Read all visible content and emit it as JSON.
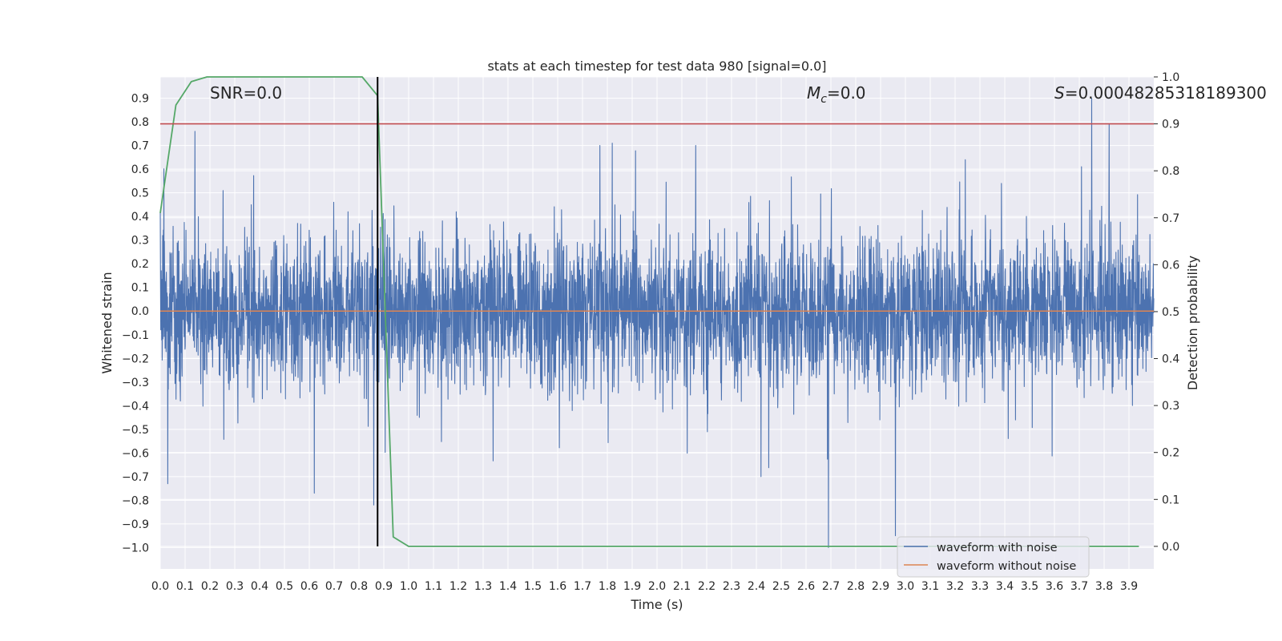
{
  "chart_data": {
    "type": "line",
    "title": "stats at each timestep for test data 980 [signal=0.0]",
    "xlabel": "Time (s)",
    "ylabel": "Whitened strain",
    "y2label": "Detection probability",
    "xlim": [
      0.0,
      4.0
    ],
    "ylim": [
      -1.09,
      0.99
    ],
    "y2lim": [
      -0.048,
      1.0
    ],
    "x_ticks": [
      0.0,
      0.1,
      0.2,
      0.3,
      0.4,
      0.5,
      0.6,
      0.7,
      0.8,
      0.9,
      1.0,
      1.1,
      1.2,
      1.3,
      1.4,
      1.5,
      1.6,
      1.7,
      1.8,
      1.9,
      2.0,
      2.1,
      2.2,
      2.3,
      2.4,
      2.5,
      2.6,
      2.7,
      2.8,
      2.9,
      3.0,
      3.1,
      3.2,
      3.3,
      3.4,
      3.5,
      3.6,
      3.7,
      3.8,
      3.9
    ],
    "x_tick_labels": [
      "0.0",
      "0.1",
      "0.2",
      "0.3",
      "0.4",
      "0.5",
      "0.6",
      "0.7",
      "0.8",
      "0.9",
      "1.0",
      "1.1",
      "1.2",
      "1.3",
      "1.4",
      "1.5",
      "1.6",
      "1.7",
      "1.8",
      "1.9",
      "2.0",
      "2.1",
      "2.2",
      "2.3",
      "2.4",
      "2.5",
      "2.6",
      "2.7",
      "2.8",
      "2.9",
      "3.0",
      "3.1",
      "3.2",
      "3.3",
      "3.4",
      "3.5",
      "3.6",
      "3.7",
      "3.8",
      "3.9"
    ],
    "y_ticks": [
      0.9,
      0.8,
      0.7,
      0.6,
      0.5,
      0.4,
      0.3,
      0.2,
      0.1,
      0.0,
      -0.1,
      -0.2,
      -0.3,
      -0.4,
      -0.5,
      -0.6,
      -0.7,
      -0.8,
      -0.9,
      -1.0
    ],
    "y_tick_labels": [
      "0.9",
      "0.8",
      "0.7",
      "0.6",
      "0.5",
      "0.4",
      "0.3",
      "0.2",
      "0.1",
      "0.0",
      "−0.1",
      "−0.2",
      "−0.3",
      "−0.4",
      "−0.5",
      "−0.6",
      "−0.7",
      "−0.8",
      "−0.9",
      "−1.0"
    ],
    "y2_ticks": [
      1.0,
      0.9,
      0.8,
      0.7,
      0.6,
      0.5,
      0.4,
      0.3,
      0.2,
      0.1,
      0.0
    ],
    "y2_tick_labels": [
      "1.0",
      "0.9",
      "0.8",
      "0.7",
      "0.6",
      "0.5",
      "0.4",
      "0.3",
      "0.2",
      "0.1",
      "0.0"
    ],
    "annotations": {
      "snr": "SNR=0.0",
      "mc_symbol": "M",
      "mc_subscript": "c",
      "mc_value": "=0.0",
      "s_symbol": "S",
      "s_value": "=0.00048285318189300"
    },
    "series": [
      {
        "name": "waveform with noise",
        "axis": "left",
        "color": "#4c72b0",
        "description": "dense whitened noise trace, approx. 4096 samples between -1.0 and 0.9",
        "samples": 4096,
        "typical_range": [
          -0.45,
          0.45
        ],
        "extremes": [
          {
            "x": 0.03,
            "y": -0.73
          },
          {
            "x": 0.14,
            "y": 0.76
          },
          {
            "x": 0.62,
            "y": -0.77
          },
          {
            "x": 0.86,
            "y": -0.82
          },
          {
            "x": 1.82,
            "y": 0.71
          },
          {
            "x": 2.69,
            "y": -1.0
          },
          {
            "x": 2.96,
            "y": -0.95
          },
          {
            "x": 3.75,
            "y": 0.9
          },
          {
            "x": 3.82,
            "y": 0.79
          }
        ]
      },
      {
        "name": "waveform without noise",
        "axis": "left",
        "color": "#dd8452",
        "x": [
          0.0,
          4.0
        ],
        "y": [
          0.0,
          0.0
        ]
      },
      {
        "name": "detection probability",
        "axis": "right",
        "color": "#55a868",
        "x": [
          0.0,
          0.063,
          0.125,
          0.188,
          0.25,
          0.313,
          0.375,
          0.438,
          0.5,
          0.563,
          0.625,
          0.688,
          0.75,
          0.813,
          0.875,
          0.938,
          1.0,
          1.063,
          1.5,
          2.0,
          2.4,
          2.7,
          3.5,
          3.94
        ],
        "y": [
          0.71,
          0.94,
          0.99,
          1.0,
          1.0,
          1.0,
          1.0,
          1.0,
          1.0,
          1.0,
          1.0,
          1.0,
          1.0,
          1.0,
          0.96,
          0.02,
          0.0,
          0.0,
          0.0,
          0.0,
          0.0,
          0.0,
          0.0,
          0.0
        ]
      }
    ],
    "threshold_line": {
      "axis": "right",
      "value": 0.9,
      "color": "#c44e52"
    },
    "vertical_line": {
      "x": 0.875,
      "color": "#000000"
    },
    "legend": {
      "position": "lower-right",
      "entries": [
        {
          "label": "waveform with noise",
          "color": "#4c72b0"
        },
        {
          "label": "waveform without noise",
          "color": "#dd8452"
        }
      ]
    },
    "style": {
      "background": "#eaeaf2",
      "grid": true,
      "grid_color": "#ffffff"
    }
  }
}
